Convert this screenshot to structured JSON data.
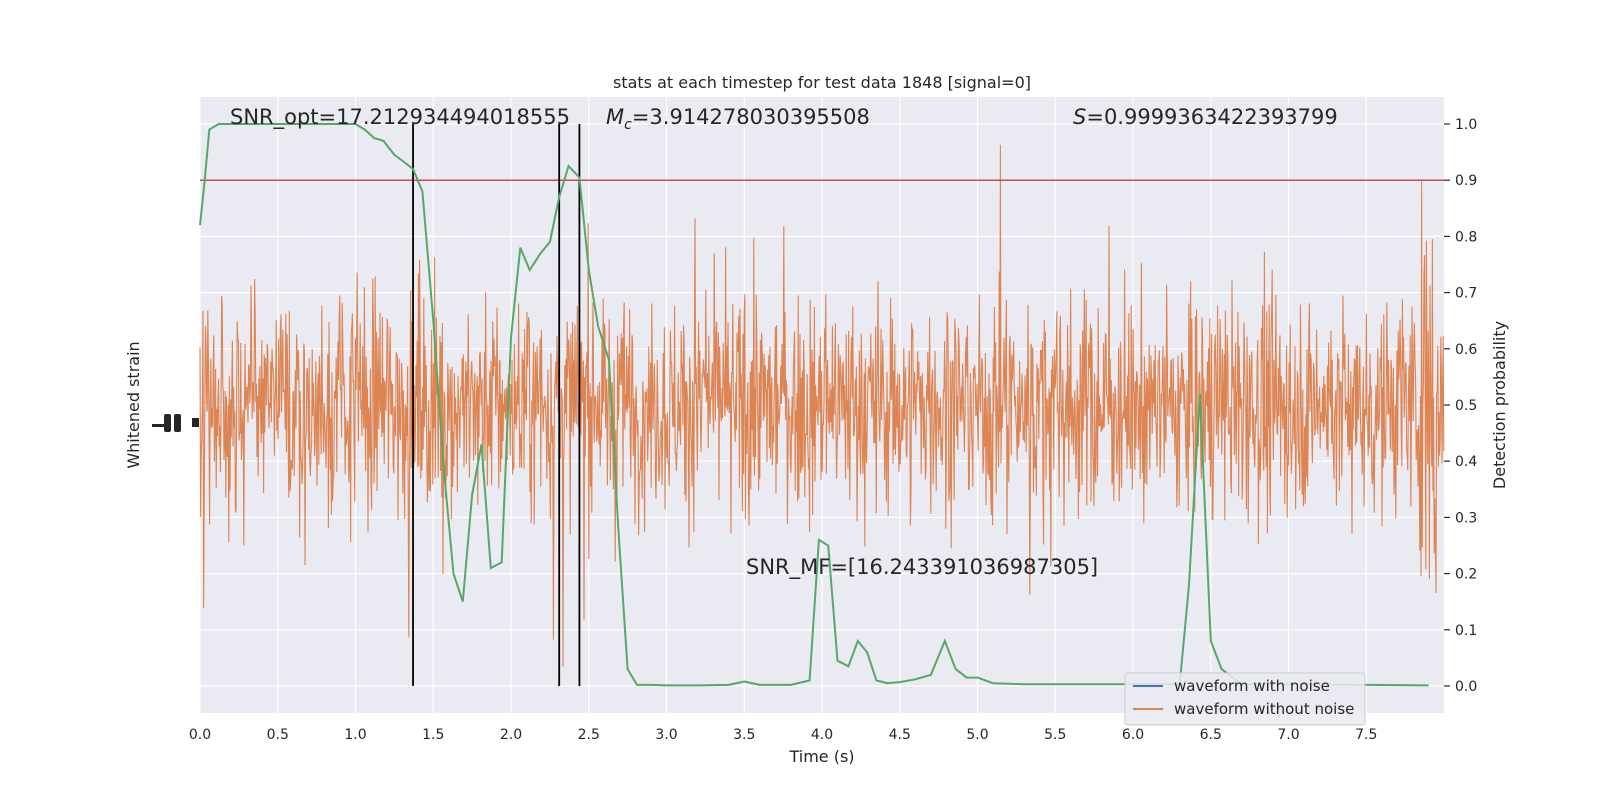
{
  "chart_data": {
    "type": "line",
    "title": "stats at each timestep for test data 1848 [signal=0]",
    "xlabel": "Time (s)",
    "ylabel_left": "Whitened strain",
    "ylabel_right": "Detection probability",
    "xlim": [
      0,
      8
    ],
    "ylim_right": [
      0,
      1
    ],
    "x_ticks": [
      "0.0",
      "0.5",
      "1.0",
      "1.5",
      "2.0",
      "2.5",
      "3.0",
      "3.5",
      "4.0",
      "4.5",
      "5.0",
      "5.5",
      "6.0",
      "6.5",
      "7.0",
      "7.5"
    ],
    "y_ticks_right": [
      "0.0",
      "0.1",
      "0.2",
      "0.3",
      "0.4",
      "0.5",
      "0.6",
      "0.7",
      "0.8",
      "0.9",
      "1.0"
    ],
    "grid": true,
    "legend_position": "lower-right",
    "annotations": {
      "snr_opt": "SNR_opt=17.212934494018555",
      "mc_prefix": "M",
      "mc_sub": "c",
      "mc_value": "=3.914278030395508",
      "s_prefix": "S",
      "s_value": "=0.9999363422393799",
      "snr_mf": "SNR_MF=[16.243391036987305]"
    },
    "threshold": 0.9,
    "vertical_lines_x": [
      1.37,
      2.31,
      2.44
    ],
    "series": [
      {
        "name": "waveform with noise",
        "color": "#4c72b0"
      },
      {
        "name": "waveform without noise",
        "color": "#dd8452"
      },
      {
        "color": "#55a868",
        "x": [
          0.0,
          0.03,
          0.06,
          0.12,
          0.2,
          0.3,
          0.4,
          0.5,
          0.6,
          0.7,
          0.8,
          0.9,
          1.0,
          1.06,
          1.12,
          1.18,
          1.25,
          1.3,
          1.37,
          1.43,
          1.5,
          1.57,
          1.63,
          1.69,
          1.75,
          1.81,
          1.87,
          1.94,
          2.0,
          2.06,
          2.12,
          2.19,
          2.25,
          2.31,
          2.37,
          2.44,
          2.5,
          2.56,
          2.63,
          2.69,
          2.75,
          2.81,
          2.9,
          3.0,
          3.2,
          3.4,
          3.5,
          3.6,
          3.8,
          3.92,
          3.98,
          4.04,
          4.1,
          4.17,
          4.23,
          4.29,
          4.35,
          4.42,
          4.5,
          4.6,
          4.7,
          4.79,
          4.86,
          4.93,
          5.0,
          5.1,
          5.3,
          5.5,
          6.0,
          6.2,
          6.3,
          6.36,
          6.43,
          6.5,
          6.57,
          6.7,
          7.0,
          7.5,
          7.9
        ],
        "y": [
          0.82,
          0.9,
          0.99,
          1.0,
          1.0,
          1.0,
          1.0,
          1.0,
          1.0,
          1.0,
          1.0,
          1.0,
          1.0,
          0.99,
          0.975,
          0.97,
          0.945,
          0.935,
          0.92,
          0.88,
          0.65,
          0.38,
          0.2,
          0.15,
          0.34,
          0.43,
          0.21,
          0.22,
          0.62,
          0.78,
          0.74,
          0.77,
          0.79,
          0.87,
          0.925,
          0.905,
          0.74,
          0.64,
          0.58,
          0.28,
          0.03,
          0.002,
          0.002,
          0.001,
          0.001,
          0.002,
          0.008,
          0.002,
          0.002,
          0.01,
          0.26,
          0.25,
          0.045,
          0.035,
          0.08,
          0.06,
          0.01,
          0.005,
          0.007,
          0.012,
          0.02,
          0.08,
          0.03,
          0.015,
          0.015,
          0.005,
          0.003,
          0.003,
          0.003,
          0.003,
          0.003,
          0.18,
          0.52,
          0.08,
          0.03,
          0.003,
          0.003,
          0.002,
          0.001
        ]
      }
    ]
  }
}
